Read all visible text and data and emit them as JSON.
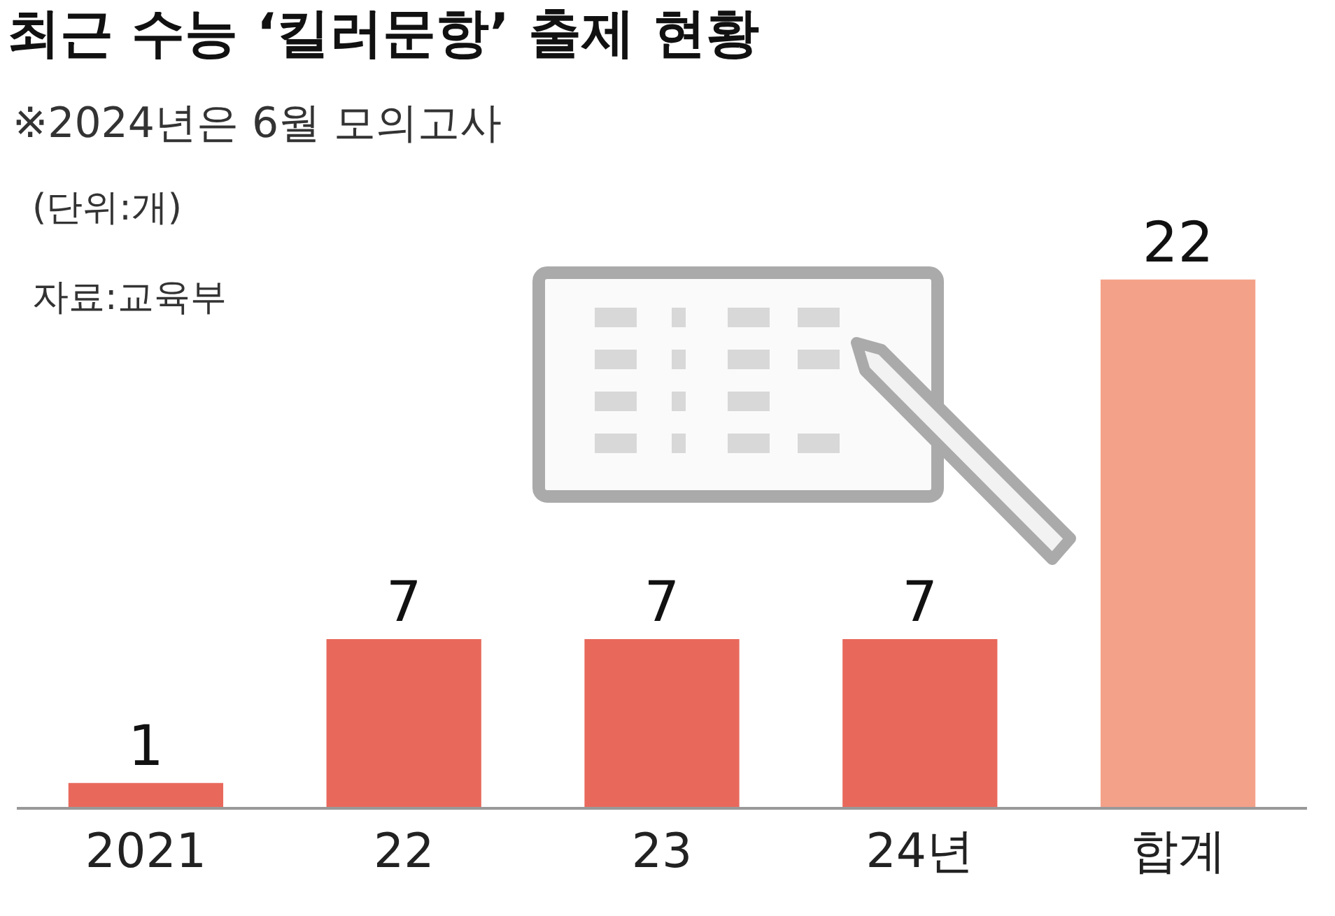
{
  "chart_data": {
    "type": "bar",
    "title": "최근 수능 ‘킬러문항’ 출제 현황",
    "annotations": [
      "※2024년은 6월 모의고사",
      "(단위:개)",
      "자료:교육부"
    ],
    "categories": [
      "2021",
      "22",
      "23",
      "24년",
      "합계"
    ],
    "values": [
      1,
      7,
      7,
      7,
      22
    ],
    "colors": [
      "#e8695c",
      "#e8695c",
      "#e8695c",
      "#e8695c",
      "#f4a189"
    ],
    "data_labels": true,
    "grid": false,
    "legend": false
  }
}
